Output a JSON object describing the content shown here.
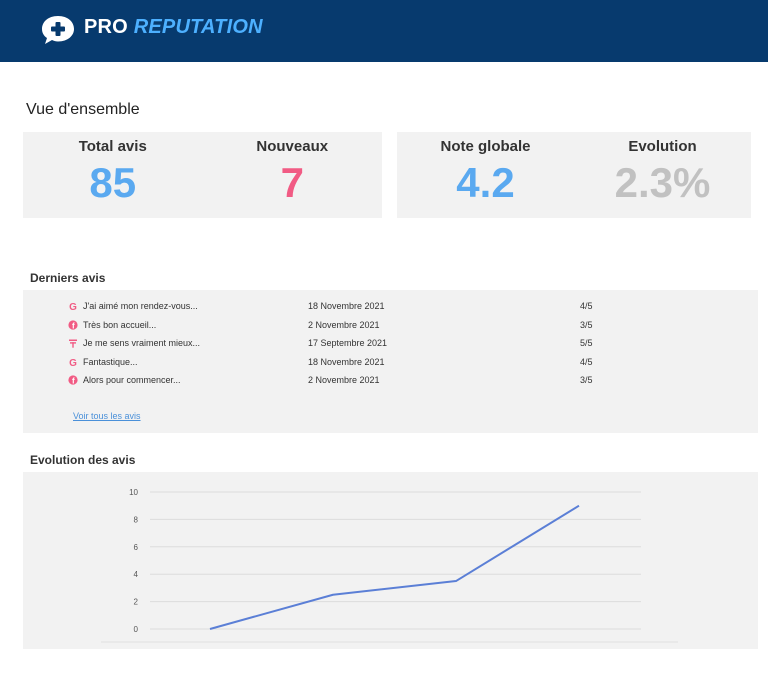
{
  "header": {
    "brand_pro": "PRO",
    "brand_reputation": "REPUTATION",
    "logo_icon": "chat-plus-icon",
    "background_color": "#073a6e",
    "accent_color": "#4db0ff"
  },
  "overview": {
    "title": "Vue d'ensemble",
    "kpis": [
      {
        "label": "Total avis",
        "value": "85",
        "color": "#5aa9f0"
      },
      {
        "label": "Nouveaux",
        "value": "7",
        "color": "#f15b84"
      },
      {
        "label": "Note globale",
        "value": "4.2",
        "color": "#5aa9f0"
      },
      {
        "label": "Evolution",
        "value": "2.3%",
        "color": "#c1c1c1"
      }
    ]
  },
  "latest_reviews": {
    "title": "Derniers avis",
    "rows": [
      {
        "source_icon": "google-icon",
        "text": "J'ai aimé mon rendez-vous...",
        "date": "18 Novembre 2021",
        "score": "4/5"
      },
      {
        "source_icon": "facebook-icon",
        "text": "Très bon accueil...",
        "date": "2 Novembre 2021",
        "score": "3/5"
      },
      {
        "source_icon": "tripadvisor-icon",
        "text": "Je me sens vraiment mieux...",
        "date": "17 Septembre 2021",
        "score": "5/5"
      },
      {
        "source_icon": "google-icon",
        "text": "Fantastique...",
        "date": "18 Novembre 2021",
        "score": "4/5"
      },
      {
        "source_icon": "facebook-icon",
        "text": "Alors pour commencer...",
        "date": "2 Novembre 2021",
        "score": "3/5"
      }
    ],
    "see_all_label": "Voir tous les avis",
    "icon_color": "#f15b84"
  },
  "evolution": {
    "title": "Evolution des avis"
  },
  "chart_data": {
    "type": "line",
    "x": [
      0,
      1,
      2,
      3
    ],
    "series": [
      {
        "values": [
          0,
          2.5,
          3.5,
          9
        ]
      }
    ],
    "yticks": [
      "0",
      "2",
      "4",
      "6",
      "8",
      "10"
    ],
    "ylim": [
      0,
      10
    ],
    "grid": true,
    "line_color": "#5b7fd6"
  }
}
